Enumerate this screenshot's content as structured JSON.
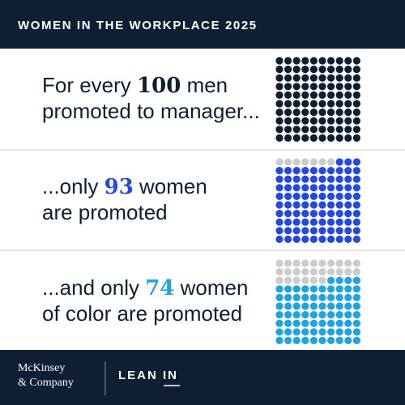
{
  "header": {
    "title": "WOMEN IN THE WORKPLACE 2025"
  },
  "rows": [
    {
      "before": "For every",
      "number": 100,
      "after": "men",
      "line2": "promoted to manager...",
      "color": "#0f1f33"
    },
    {
      "before": "...only",
      "number": 93,
      "after": "women",
      "line2": "are promoted",
      "color": "#2448e0"
    },
    {
      "before": "...and only",
      "number": 74,
      "after": "women",
      "line2": "of color are promoted",
      "color": "#1ea3e3"
    }
  ],
  "empty_color": "#cccccc",
  "footer": {
    "brand1_line1": "McKinsey",
    "brand1_line2": "& Company",
    "brand2": "LEAN IN"
  }
}
